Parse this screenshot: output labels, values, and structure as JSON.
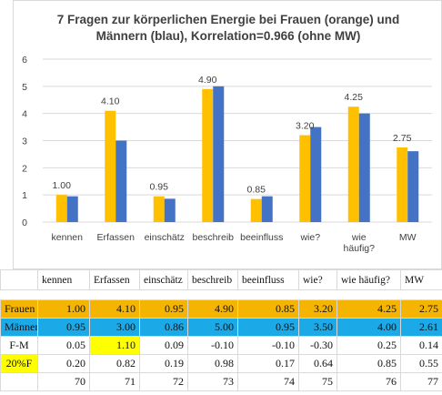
{
  "chart_data": {
    "type": "bar",
    "title_lines": [
      "7 Fragen zur körperlichen Energie bei Frauen (orange) und",
      "Männern (blau), Korrelation=0.966 (ohne MW)"
    ],
    "categories": [
      [
        "kennen"
      ],
      [
        "Erfassen"
      ],
      [
        "einschätz"
      ],
      [
        "beschreib"
      ],
      [
        "beeinfluss"
      ],
      [
        "wie?"
      ],
      [
        "wie",
        "häufig?"
      ],
      [
        "MW"
      ]
    ],
    "series": [
      {
        "values": [
          1.0,
          4.1,
          0.95,
          4.9,
          0.85,
          3.2,
          4.25,
          2.75
        ],
        "color": "#FFC000"
      },
      {
        "values": [
          0.95,
          3.0,
          0.86,
          5.0,
          0.95,
          3.5,
          4.0,
          2.61
        ],
        "color": "#4472C4"
      }
    ],
    "data_labels": [
      "1.00",
      "4.10",
      "0.95",
      "4.90",
      "0.85",
      "3.20",
      "4.25",
      "2.75"
    ],
    "ylim": [
      0,
      6
    ],
    "yticks": [
      "0",
      "1",
      "2",
      "3",
      "4",
      "5",
      "6"
    ],
    "grid": true,
    "legend": "none"
  },
  "table": {
    "header": [
      "",
      "kennen",
      "Erfassen",
      "einschätz",
      "beschreib",
      "beeinfluss",
      "wie?",
      "wie häufig?",
      "MW"
    ],
    "rows": [
      {
        "label": "Frauen",
        "values": [
          "1.00",
          "4.10",
          "0.95",
          "4.90",
          "0.85",
          "3.20",
          "4.25",
          "2.75"
        ],
        "color": "#F4B400"
      },
      {
        "label": "Männer",
        "values": [
          "0.95",
          "3.00",
          "0.86",
          "5.00",
          "0.95",
          "3.50",
          "4.00",
          "2.61"
        ],
        "color": "#1BA9E8"
      },
      {
        "label": "F-M",
        "values": [
          "0.05",
          "1.10",
          "0.09",
          "-0.10",
          "-0.10",
          "-0.30",
          "0.25",
          "0.14"
        ],
        "highlight_index": 1
      },
      {
        "label": "20%F",
        "values": [
          "0.20",
          "0.82",
          "0.19",
          "0.98",
          "0.17",
          "0.64",
          "0.85",
          "0.55"
        ],
        "label_highlight": true
      },
      {
        "label": "",
        "values": [
          "70",
          "71",
          "72",
          "73",
          "74",
          "75",
          "76",
          "77"
        ]
      }
    ],
    "highlight_color": "#FFFF00"
  }
}
